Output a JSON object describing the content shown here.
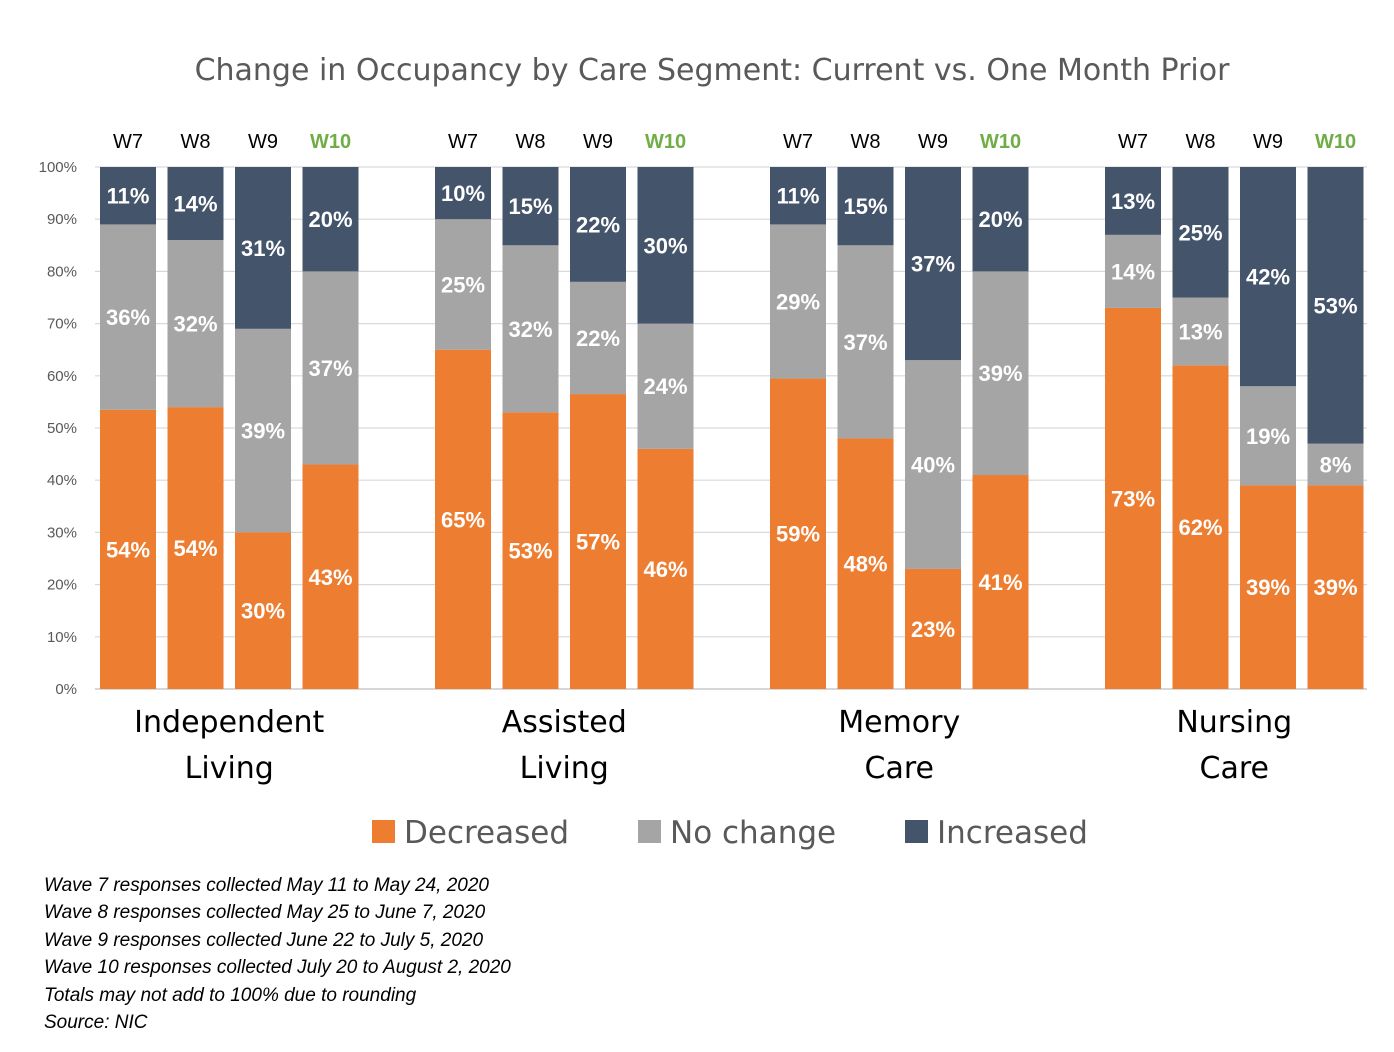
{
  "chart_data": {
    "type": "stacked-bar-100",
    "title": "Change in Occupancy by Care Segment: Current vs. One Month Prior",
    "ylim": [
      0,
      100
    ],
    "yticks": [
      "0%",
      "10%",
      "20%",
      "30%",
      "40%",
      "50%",
      "60%",
      "70%",
      "80%",
      "90%",
      "100%"
    ],
    "waves": [
      "W7",
      "W8",
      "W9",
      "W10"
    ],
    "current_wave": "W10",
    "series": [
      {
        "name": "Decreased",
        "color": "#ed7d31"
      },
      {
        "name": "No change",
        "color": "#a5a5a5"
      },
      {
        "name": "Increased",
        "color": "#44546a"
      }
    ],
    "groups": [
      {
        "label_lines": [
          "Independent",
          "Living"
        ],
        "bars": [
          {
            "wave": "W7",
            "decreased": 54,
            "no_change": 36,
            "increased": 11,
            "dec_top": 53.5,
            "nc_top": 89
          },
          {
            "wave": "W8",
            "decreased": 54,
            "no_change": 32,
            "increased": 14,
            "dec_top": 54,
            "nc_top": 86
          },
          {
            "wave": "W9",
            "decreased": 30,
            "no_change": 39,
            "increased": 31,
            "dec_top": 30,
            "nc_top": 69
          },
          {
            "wave": "W10",
            "decreased": 43,
            "no_change": 37,
            "increased": 20,
            "dec_top": 43,
            "nc_top": 80
          }
        ]
      },
      {
        "label_lines": [
          "Assisted",
          "Living"
        ],
        "bars": [
          {
            "wave": "W7",
            "decreased": 65,
            "no_change": 25,
            "increased": 10,
            "dec_top": 65,
            "nc_top": 90
          },
          {
            "wave": "W8",
            "decreased": 53,
            "no_change": 32,
            "increased": 15,
            "dec_top": 53,
            "nc_top": 85
          },
          {
            "wave": "W9",
            "decreased": 57,
            "no_change": 22,
            "increased": 22,
            "dec_top": 56.5,
            "nc_top": 78
          },
          {
            "wave": "W10",
            "decreased": 46,
            "no_change": 24,
            "increased": 30,
            "dec_top": 46,
            "nc_top": 70
          }
        ]
      },
      {
        "label_lines": [
          "Memory",
          "Care"
        ],
        "bars": [
          {
            "wave": "W7",
            "decreased": 59,
            "no_change": 29,
            "increased": 11,
            "dec_top": 59.5,
            "nc_top": 89
          },
          {
            "wave": "W8",
            "decreased": 48,
            "no_change": 37,
            "increased": 15,
            "dec_top": 48,
            "nc_top": 85
          },
          {
            "wave": "W9",
            "decreased": 23,
            "no_change": 40,
            "increased": 37,
            "dec_top": 23,
            "nc_top": 63
          },
          {
            "wave": "W10",
            "decreased": 41,
            "no_change": 39,
            "increased": 20,
            "dec_top": 41,
            "nc_top": 80
          }
        ]
      },
      {
        "label_lines": [
          "Nursing",
          "Care"
        ],
        "bars": [
          {
            "wave": "W7",
            "decreased": 73,
            "no_change": 14,
            "increased": 13,
            "dec_top": 73,
            "nc_top": 87
          },
          {
            "wave": "W8",
            "decreased": 62,
            "no_change": 13,
            "increased": 25,
            "dec_top": 62,
            "nc_top": 75
          },
          {
            "wave": "W9",
            "decreased": 39,
            "no_change": 19,
            "increased": 42,
            "dec_top": 39,
            "nc_top": 58
          },
          {
            "wave": "W10",
            "decreased": 39,
            "no_change": 8,
            "increased": 53,
            "dec_top": 39,
            "nc_top": 47
          }
        ]
      }
    ]
  },
  "notes": [
    "Wave 7 responses collected May 11 to May 24, 2020",
    "Wave 8 responses collected May 25 to June 7, 2020",
    "Wave 9 responses collected June 22 to July 5, 2020",
    "Wave 10 responses collected July 20 to August 2, 2020",
    "Totals may not add to 100% due to rounding",
    "Source: NIC"
  ]
}
